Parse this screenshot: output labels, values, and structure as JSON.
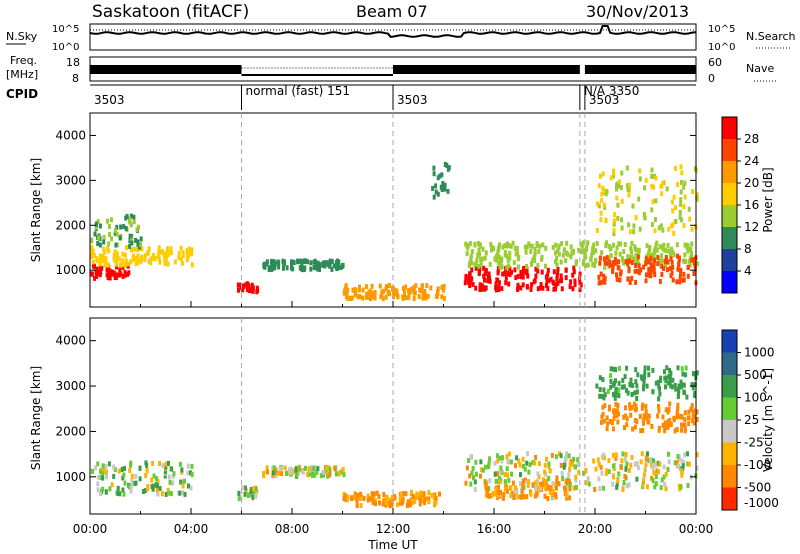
{
  "header": {
    "station": "Saskatoon (fitACF)",
    "beam": "Beam 07",
    "date": "30/Nov/2013"
  },
  "noise_panel": {
    "left_label": "N.Sky",
    "right_label": "N.Search",
    "left_ticks": [
      "10^5",
      "10^0"
    ],
    "right_ticks": [
      "10^5",
      "10^0"
    ]
  },
  "freq_panel": {
    "left_label_line1": "Freq.",
    "left_label_line2": "[MHz]",
    "left_ticks": [
      "18",
      "8"
    ],
    "right_label": "Nave",
    "right_ticks": [
      "60",
      "0"
    ]
  },
  "cpid": {
    "label": "CPID",
    "segments": [
      {
        "start_hour": 0,
        "text": "3503"
      },
      {
        "start_hour": 6,
        "text": "normal (fast) 151"
      },
      {
        "start_hour": 12,
        "text": "3503"
      },
      {
        "start_hour": 19.4,
        "text": "N/A 3350"
      },
      {
        "start_hour": 19.6,
        "text": "3503"
      }
    ]
  },
  "power_panel": {
    "ylabel": "Slant Range [km]",
    "yticks": [
      "1000",
      "2000",
      "3000",
      "4000"
    ],
    "colorbar_label": "Power [dB]",
    "colorbar_ticks": [
      "28",
      "24",
      "20",
      "16",
      "12",
      "8",
      "4"
    ],
    "colors": [
      "#ff0000",
      "#ff4400",
      "#ff9900",
      "#ffcc00",
      "#9acd32",
      "#2e8b57",
      "#20419a",
      "#0000ff"
    ]
  },
  "velocity_panel": {
    "ylabel": "Slant Range [km]",
    "yticks": [
      "1000",
      "2000",
      "3000",
      "4000"
    ],
    "colorbar_label": "Velocity [m s^-1]",
    "colorbar_ticks": [
      "1000",
      "500",
      "100",
      "25",
      "-25",
      "-100",
      "-500",
      "-1000"
    ],
    "colors": [
      "#1a3fb5",
      "#2e6b8a",
      "#3a9d4a",
      "#66cc33",
      "#c8c8c8",
      "#ffb300",
      "#ff8800",
      "#ff2a00"
    ]
  },
  "time_axis": {
    "ticks": [
      "00:00",
      "04:00",
      "08:00",
      "12:00",
      "16:00",
      "20:00",
      "00:00"
    ],
    "label": "Time UT"
  },
  "chart_data": [
    {
      "type": "heatmap",
      "title": "Power",
      "xlabel": "Time UT",
      "ylabel": "Slant Range [km]",
      "xlim": [
        0,
        24
      ],
      "ylim": [
        180,
        4500
      ],
      "z_label": "Power [dB]",
      "z_range": [
        0,
        30
      ],
      "bands": [
        {
          "t0": 0.0,
          "t1": 1.5,
          "r0": 800,
          "r1": 1100,
          "value": 28
        },
        {
          "t0": 0.0,
          "t1": 4.0,
          "r0": 1100,
          "r1": 1500,
          "value": 16
        },
        {
          "t0": 0.0,
          "t1": 2.0,
          "r0": 1500,
          "r1": 2200,
          "value": 10
        },
        {
          "t0": 5.8,
          "t1": 6.6,
          "r0": 500,
          "r1": 700,
          "value": 28
        },
        {
          "t0": 6.8,
          "t1": 10.0,
          "r0": 1000,
          "r1": 1200,
          "value": 8
        },
        {
          "t0": 10.0,
          "t1": 14.0,
          "r0": 350,
          "r1": 650,
          "value": 20
        },
        {
          "t0": 14.8,
          "t1": 19.4,
          "r0": 550,
          "r1": 1050,
          "value": 28
        },
        {
          "t0": 14.8,
          "t1": 24.0,
          "r0": 1050,
          "r1": 1600,
          "value": 12
        },
        {
          "t0": 20.0,
          "t1": 24.0,
          "r0": 700,
          "r1": 1300,
          "value": 24
        },
        {
          "t0": 20.0,
          "t1": 24.0,
          "r0": 1800,
          "r1": 3300,
          "value": 14
        },
        {
          "t0": 13.5,
          "t1": 14.2,
          "r0": 2600,
          "r1": 3400,
          "value": 8
        }
      ]
    },
    {
      "type": "heatmap",
      "title": "Velocity",
      "xlabel": "Time UT",
      "ylabel": "Slant Range [km]",
      "xlim": [
        0,
        24
      ],
      "ylim": [
        180,
        4500
      ],
      "z_label": "Velocity [m s^-1]",
      "z_range": [
        -1000,
        1000
      ],
      "bands": [
        {
          "t0": 0.0,
          "t1": 4.0,
          "r0": 600,
          "r1": 1300,
          "value": 60
        },
        {
          "t0": 5.8,
          "t1": 6.6,
          "r0": 500,
          "r1": 750,
          "value": 60
        },
        {
          "t0": 6.8,
          "t1": 10.0,
          "r0": 1000,
          "r1": 1200,
          "value": 0
        },
        {
          "t0": 10.0,
          "t1": 14.0,
          "r0": 350,
          "r1": 650,
          "value": -150
        },
        {
          "t0": 14.8,
          "t1": 24.0,
          "r0": 700,
          "r1": 1500,
          "value": 0
        },
        {
          "t0": 15.5,
          "t1": 19.0,
          "r0": 500,
          "r1": 900,
          "value": -120
        },
        {
          "t0": 20.0,
          "t1": 24.0,
          "r0": 2000,
          "r1": 2600,
          "value": -300
        },
        {
          "t0": 20.0,
          "t1": 24.0,
          "r0": 2700,
          "r1": 3400,
          "value": 200
        }
      ]
    }
  ]
}
